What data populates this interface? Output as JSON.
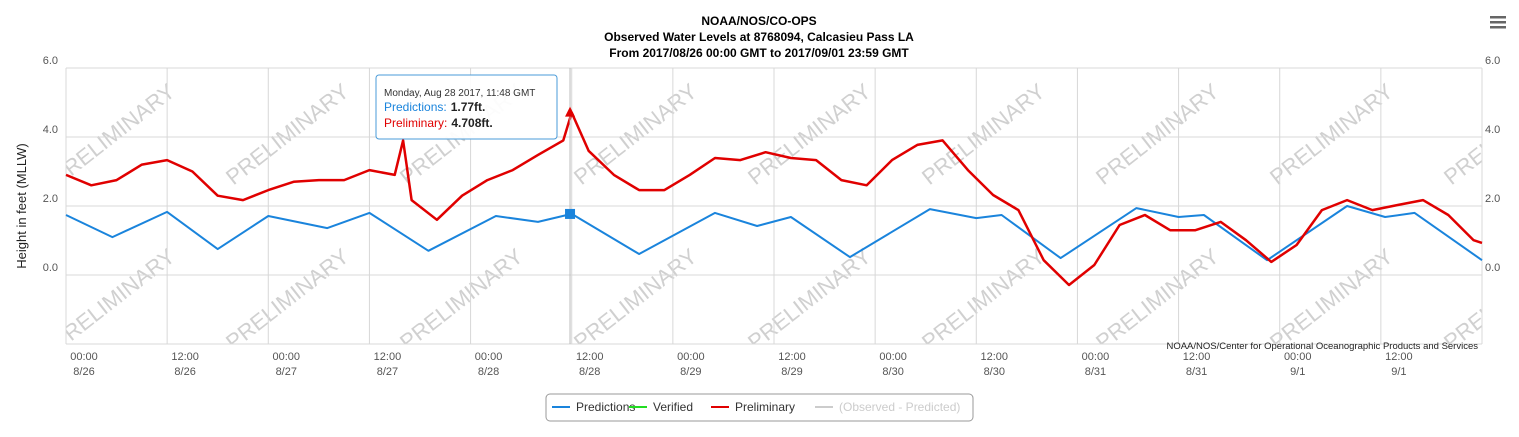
{
  "chart_data": {
    "type": "line",
    "title": "NOAA/NOS/CO-OPS",
    "subtitle": "Observed Water Levels at 8768094, Calcasieu Pass LA",
    "subtitle2": "From 2017/08/26 00:00 GMT to 2017/09/01 23:59 GMT",
    "ylabel": "Height in feet (MLLW)",
    "credits": "NOAA/NOS/Center for Operational Oceanographic Products and Services",
    "watermark": "PRELIMINARY",
    "xlim": [
      0,
      168
    ],
    "xticks": [
      {
        "value": 0,
        "label": "00:00",
        "sublabel": "8/26"
      },
      {
        "value": 12,
        "label": "12:00",
        "sublabel": "8/26"
      },
      {
        "value": 24,
        "label": "00:00",
        "sublabel": "8/27"
      },
      {
        "value": 36,
        "label": "12:00",
        "sublabel": "8/27"
      },
      {
        "value": 48,
        "label": "00:00",
        "sublabel": "8/28"
      },
      {
        "value": 60,
        "label": "12:00",
        "sublabel": "8/28"
      },
      {
        "value": 72,
        "label": "00:00",
        "sublabel": "8/29"
      },
      {
        "value": 84,
        "label": "12:00",
        "sublabel": "8/29"
      },
      {
        "value": 96,
        "label": "00:00",
        "sublabel": "8/30"
      },
      {
        "value": 108,
        "label": "12:00",
        "sublabel": "8/30"
      },
      {
        "value": 120,
        "label": "00:00",
        "sublabel": "8/31"
      },
      {
        "value": 132,
        "label": "12:00",
        "sublabel": "8/31"
      },
      {
        "value": 144,
        "label": "00:00",
        "sublabel": "9/1"
      },
      {
        "value": 156,
        "label": "12:00",
        "sublabel": "9/1"
      }
    ],
    "ylim": [
      -2,
      6
    ],
    "yticks": [
      {
        "value": 0,
        "label": "0.0"
      },
      {
        "value": 2,
        "label": "2.0"
      },
      {
        "value": 4,
        "label": "4.0"
      },
      {
        "value": 6,
        "label": "6.0"
      }
    ],
    "y2lim": [
      -2,
      6
    ],
    "y2ticks": [
      {
        "value": 0,
        "label": "0.0"
      },
      {
        "value": 2,
        "label": "2.0"
      },
      {
        "value": 4,
        "label": "4.0"
      },
      {
        "value": 6,
        "label": "6.0"
      }
    ],
    "grid": true,
    "legend": "bottom",
    "series": [
      {
        "name": "Predictions",
        "color": "#1a84dc",
        "x": [
          0,
          5.5,
          12,
          18,
          24,
          31,
          36,
          43,
          51,
          56,
          60,
          68,
          77,
          82,
          86,
          93,
          102.5,
          108,
          111,
          118,
          127,
          132,
          135,
          142.5,
          152,
          156.5,
          160,
          168
        ],
        "values": [
          1.74,
          1.1,
          1.83,
          0.75,
          1.71,
          1.36,
          1.8,
          0.7,
          1.71,
          1.54,
          1.77,
          0.61,
          1.8,
          1.42,
          1.68,
          0.52,
          1.91,
          1.65,
          1.74,
          0.49,
          1.94,
          1.68,
          1.74,
          0.43,
          2.0,
          1.68,
          1.8,
          0.43
        ]
      },
      {
        "name": "Verified",
        "color": "#22dd22",
        "x": [],
        "values": []
      },
      {
        "name": "Preliminary",
        "color": "#e00000",
        "x": [
          0,
          3,
          6,
          9,
          12,
          15,
          18,
          21,
          24,
          27,
          30,
          33,
          36,
          39,
          40,
          41,
          44,
          47,
          50,
          53,
          56,
          59,
          60,
          62,
          65,
          68,
          71,
          74,
          77,
          80,
          83,
          86,
          89,
          92,
          95,
          98,
          101,
          104,
          107,
          110,
          113,
          116,
          119,
          122,
          125,
          128,
          131,
          134,
          137,
          140,
          143,
          146,
          149,
          152,
          155,
          158,
          161,
          164,
          167,
          168
        ],
        "values": [
          2.9,
          2.6,
          2.75,
          3.2,
          3.33,
          3.0,
          2.3,
          2.17,
          2.46,
          2.7,
          2.75,
          2.75,
          3.04,
          2.9,
          3.9,
          2.17,
          1.6,
          2.3,
          2.75,
          3.04,
          3.48,
          3.9,
          4.708,
          3.6,
          2.9,
          2.46,
          2.46,
          2.9,
          3.39,
          3.33,
          3.56,
          3.39,
          3.33,
          2.75,
          2.6,
          3.33,
          3.77,
          3.9,
          3.04,
          2.32,
          1.88,
          0.43,
          -0.29,
          0.29,
          1.45,
          1.74,
          1.3,
          1.3,
          1.54,
          1.01,
          0.38,
          0.87,
          1.88,
          2.17,
          1.88,
          2.03,
          2.17,
          1.74,
          1.01,
          0.93
        ]
      },
      {
        "name": "(Observed - Predicted)",
        "color": "#cccccc",
        "x": [],
        "values": []
      }
    ],
    "tooltip": {
      "title": "Monday, Aug 28 2017, 11:48 GMT",
      "x": 59.8,
      "items": [
        {
          "label": "Predictions:",
          "value": 1.77,
          "value_label": "1.77ft."
        },
        {
          "label": "Preliminary:",
          "value": 4.708,
          "value_label": "4.708ft."
        }
      ]
    }
  }
}
